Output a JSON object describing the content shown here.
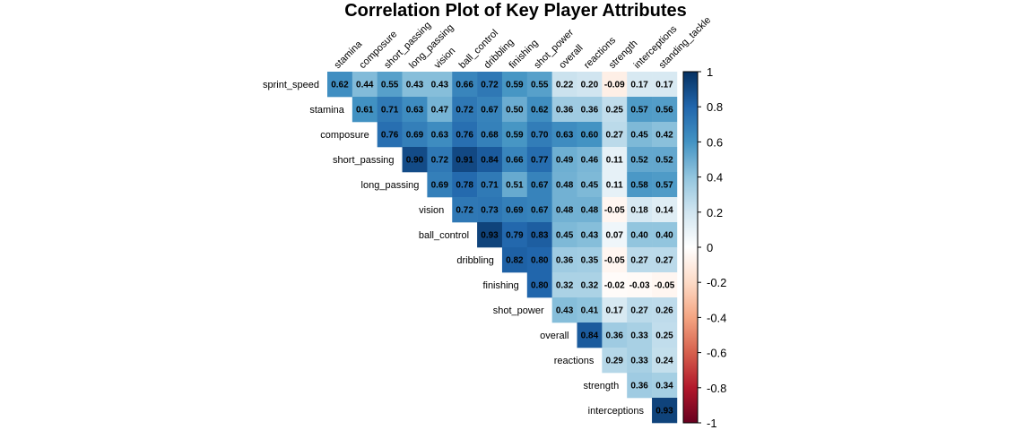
{
  "chart_data": {
    "type": "heatmap",
    "title": "Correlation Plot of Key Player Attributes",
    "row_labels": [
      "sprint_speed",
      "stamina",
      "composure",
      "short_passing",
      "long_passing",
      "vision",
      "ball_control",
      "dribbling",
      "finishing",
      "shot_power",
      "overall",
      "reactions",
      "strength",
      "interceptions"
    ],
    "col_labels": [
      "stamina",
      "composure",
      "short_passing",
      "long_passing",
      "vision",
      "ball_control",
      "dribbling",
      "finishing",
      "shot_power",
      "overall",
      "reactions",
      "strength",
      "interceptions",
      "standing_tackle"
    ],
    "values": [
      [
        0.62,
        0.44,
        0.55,
        0.43,
        0.43,
        0.66,
        0.72,
        0.59,
        0.55,
        0.22,
        0.2,
        -0.09,
        0.17,
        0.17
      ],
      [
        0.61,
        0.71,
        0.63,
        0.47,
        0.72,
        0.67,
        0.5,
        0.62,
        0.36,
        0.36,
        0.25,
        0.57,
        0.56
      ],
      [
        0.76,
        0.69,
        0.63,
        0.76,
        0.68,
        0.59,
        0.7,
        0.63,
        0.6,
        0.27,
        0.45,
        0.42
      ],
      [
        0.9,
        0.72,
        0.91,
        0.84,
        0.66,
        0.77,
        0.49,
        0.46,
        0.11,
        0.52,
        0.52
      ],
      [
        0.69,
        0.78,
        0.71,
        0.51,
        0.67,
        0.48,
        0.45,
        0.11,
        0.58,
        0.57
      ],
      [
        0.72,
        0.73,
        0.69,
        0.67,
        0.48,
        0.48,
        -0.05,
        0.18,
        0.14
      ],
      [
        0.93,
        0.79,
        0.83,
        0.45,
        0.43,
        0.07,
        0.4,
        0.4
      ],
      [
        0.82,
        0.8,
        0.36,
        0.35,
        -0.05,
        0.27,
        0.27
      ],
      [
        0.8,
        0.32,
        0.32,
        -0.02,
        -0.03,
        -0.05
      ],
      [
        0.43,
        0.41,
        0.17,
        0.27,
        0.26
      ],
      [
        0.84,
        0.36,
        0.33,
        0.25
      ],
      [
        0.29,
        0.33,
        0.24
      ],
      [
        0.36,
        0.34
      ],
      [
        0.93
      ]
    ],
    "value_labels": [
      [
        "0.62",
        "0.44",
        "0.55",
        "0.43",
        "0.43",
        "0.66",
        "0.72",
        "0.59",
        "0.55",
        "0.22",
        "0.20",
        "-0.09",
        "0.17",
        "0.17"
      ],
      [
        "0.61",
        "0.71",
        "0.63",
        "0.47",
        "0.72",
        "0.67",
        "0.50",
        "0.62",
        "0.36",
        "0.36",
        "0.25",
        "0.57",
        "0.56"
      ],
      [
        "0.76",
        "0.69",
        "0.63",
        "0.76",
        "0.68",
        "0.59",
        "0.70",
        "0.63",
        "0.60",
        "0.27",
        "0.45",
        "0.42"
      ],
      [
        "0.90",
        "0.72",
        "0.91",
        "0.84",
        "0.66",
        "0.77",
        "0.49",
        "0.46",
        "0.11",
        "0.52",
        "0.52"
      ],
      [
        "0.69",
        "0.78",
        "0.71",
        "0.51",
        "0.67",
        "0.48",
        "0.45",
        "0.11",
        "0.58",
        "0.57"
      ],
      [
        "0.72",
        "0.73",
        "0.69",
        "0.67",
        "0.48",
        "0.48",
        "-0.05",
        "0.18",
        "0.14"
      ],
      [
        "0.93",
        "0.79",
        "0.83",
        "0.45",
        "0.43",
        "0.07",
        "0.40",
        "0.40"
      ],
      [
        "0.82",
        "0.80",
        "0.36",
        "0.35",
        "-0.05",
        "0.27",
        "0.27"
      ],
      [
        "0.80",
        "0.32",
        "0.32",
        "-0.02",
        "-0.03",
        "-0.05"
      ],
      [
        "0.43",
        "0.41",
        "0.17",
        "0.27",
        "0.26"
      ],
      [
        "0.84",
        "0.36",
        "0.33",
        "0.25"
      ],
      [
        "0.29",
        "0.33",
        "0.24"
      ],
      [
        "0.36",
        "0.34"
      ],
      [
        "0.93"
      ]
    ],
    "color_scale": {
      "range": [
        -1,
        1
      ],
      "ticks": [
        "1",
        "0.8",
        "0.6",
        "0.4",
        "0.2",
        "0",
        "-0.2",
        "-0.4",
        "-0.6",
        "-0.8",
        "-1"
      ],
      "palette": [
        "#67001F",
        "#B2182B",
        "#D6604D",
        "#F4A582",
        "#FDDBC7",
        "#FFFFFF",
        "#D1E5F0",
        "#92C5DE",
        "#4393C3",
        "#2166AC",
        "#053061"
      ]
    },
    "legend_position": "right",
    "layout": "upper-triangle"
  }
}
